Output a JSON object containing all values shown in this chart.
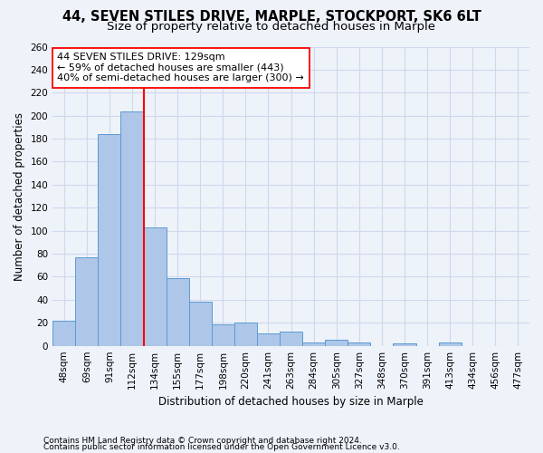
{
  "title1": "44, SEVEN STILES DRIVE, MARPLE, STOCKPORT, SK6 6LT",
  "title2": "Size of property relative to detached houses in Marple",
  "xlabel": "Distribution of detached houses by size in Marple",
  "ylabel": "Number of detached properties",
  "footnote1": "Contains HM Land Registry data © Crown copyright and database right 2024.",
  "footnote2": "Contains public sector information licensed under the Open Government Licence v3.0.",
  "bin_labels": [
    "48sqm",
    "69sqm",
    "91sqm",
    "112sqm",
    "134sqm",
    "155sqm",
    "177sqm",
    "198sqm",
    "220sqm",
    "241sqm",
    "263sqm",
    "284sqm",
    "305sqm",
    "327sqm",
    "348sqm",
    "370sqm",
    "391sqm",
    "413sqm",
    "434sqm",
    "456sqm",
    "477sqm"
  ],
  "bar_heights": [
    22,
    77,
    184,
    204,
    103,
    59,
    38,
    19,
    20,
    11,
    12,
    3,
    5,
    3,
    0,
    2,
    0,
    3,
    0,
    0,
    0
  ],
  "bar_color": "#aec6e8",
  "bar_edgecolor": "#5b9bd5",
  "vline_x": 3.5,
  "vline_color": "red",
  "annotation_text": "44 SEVEN STILES DRIVE: 129sqm\n← 59% of detached houses are smaller (443)\n40% of semi-detached houses are larger (300) →",
  "annotation_box_color": "white",
  "annotation_box_edgecolor": "red",
  "ylim": [
    0,
    260
  ],
  "yticks": [
    0,
    20,
    40,
    60,
    80,
    100,
    120,
    140,
    160,
    180,
    200,
    220,
    240,
    260
  ],
  "background_color": "#eef2f9",
  "grid_color": "#d0d8ee",
  "title1_fontsize": 10.5,
  "title2_fontsize": 9.5,
  "axis_label_fontsize": 8.5,
  "tick_fontsize": 7.5,
  "annotation_fontsize": 8,
  "footnote_fontsize": 6.5
}
